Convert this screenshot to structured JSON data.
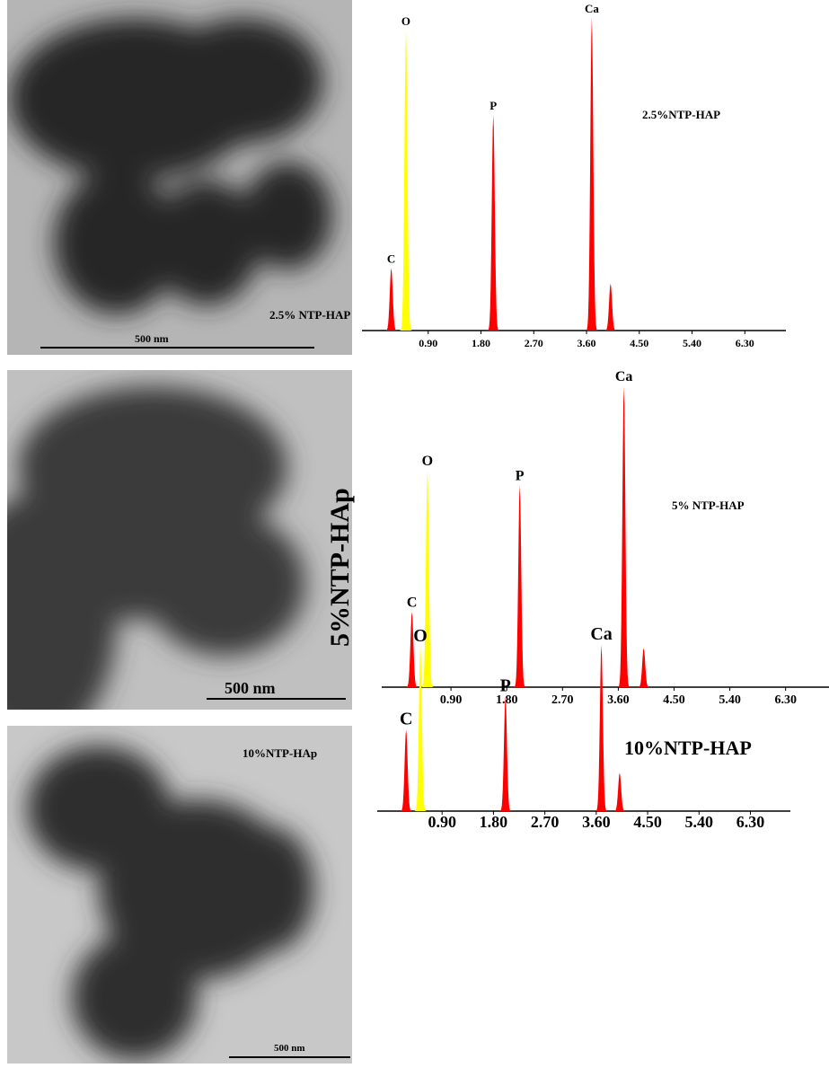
{
  "figure": {
    "panels": [
      {
        "image_label": "2.5% NTP-HAP",
        "scale_bar": "500 nm"
      },
      {
        "image_label": "5%NTP-HAp",
        "scale_bar": "500 nm"
      },
      {
        "image_label": "10%NTP-HAp",
        "scale_bar": "500 nm"
      }
    ]
  },
  "chart_data": [
    {
      "type": "spectrum",
      "title": "2.5%NTP-HAP",
      "x": [
        0.27,
        0.52,
        2.01,
        3.69,
        4.01
      ],
      "values": [
        20,
        96,
        69,
        100,
        15
      ],
      "labels": [
        "C",
        "O",
        "P",
        "Ca",
        null
      ],
      "colors": [
        "#ff0000",
        "#ffff00",
        "#ff0000",
        "#ff0000",
        "#ff0000"
      ],
      "xlim": [
        0,
        7
      ],
      "ylim": [
        0,
        100
      ],
      "xticks": [
        {
          "value": 0.9,
          "label": "0.90"
        },
        {
          "value": 1.8,
          "label": "1.80"
        },
        {
          "value": 2.7,
          "label": "2.70"
        },
        {
          "value": 3.6,
          "label": "3.60"
        },
        {
          "value": 4.5,
          "label": "4.50"
        },
        {
          "value": 5.4,
          "label": "5.40"
        },
        {
          "value": 6.3,
          "label": "6.30"
        }
      ]
    },
    {
      "type": "spectrum",
      "title": "5% NTP-HAP",
      "x": [
        0.27,
        0.52,
        2.01,
        3.69,
        4.01
      ],
      "values": [
        25,
        72,
        67,
        100,
        13
      ],
      "labels": [
        "C",
        "O",
        "P",
        "Ca",
        null
      ],
      "colors": [
        "#ff0000",
        "#ffff00",
        "#ff0000",
        "#ff0000",
        "#ff0000"
      ],
      "xlim": [
        0,
        7
      ],
      "ylim": [
        0,
        100
      ],
      "xticks": [
        {
          "value": 0.9,
          "label": "0.90"
        },
        {
          "value": 1.8,
          "label": "1.80"
        },
        {
          "value": 2.7,
          "label": "2.70"
        },
        {
          "value": 3.6,
          "label": "3.60"
        },
        {
          "value": 4.5,
          "label": "4.50"
        },
        {
          "value": 5.4,
          "label": "5.40"
        },
        {
          "value": 6.3,
          "label": "6.30"
        }
      ]
    },
    {
      "type": "spectrum",
      "title": "10%NTP-HAP",
      "x": [
        0.27,
        0.52,
        2.01,
        3.69,
        4.01
      ],
      "values": [
        49,
        99,
        69,
        100,
        23
      ],
      "labels": [
        "C",
        "O",
        "P",
        "Ca",
        null
      ],
      "colors": [
        "#ff0000",
        "#ffff00",
        "#ff0000",
        "#ff0000",
        "#ff0000"
      ],
      "xlim": [
        0,
        7
      ],
      "ylim": [
        0,
        100
      ],
      "xticks": [
        {
          "value": 0.9,
          "label": "0.90"
        },
        {
          "value": 1.8,
          "label": "1.80"
        },
        {
          "value": 2.7,
          "label": "2.70"
        },
        {
          "value": 3.6,
          "label": "3.60"
        },
        {
          "value": 4.5,
          "label": "4.50"
        },
        {
          "value": 5.4,
          "label": "5.40"
        },
        {
          "value": 6.3,
          "label": "6.30"
        }
      ]
    }
  ]
}
